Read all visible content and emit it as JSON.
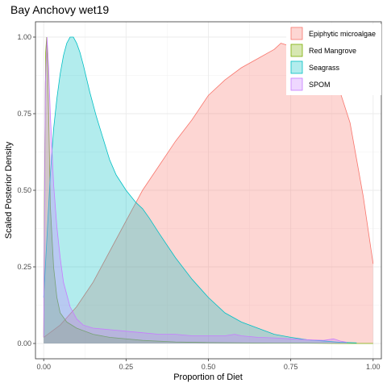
{
  "chart_data": {
    "type": "area",
    "title": "Bay Anchovy wet19",
    "xlabel": "Proportion of Diet",
    "ylabel": "Scaled Posterior Density",
    "xlim": [
      -0.025,
      1.025
    ],
    "ylim": [
      -0.05,
      1.05
    ],
    "x_ticks": [
      "0.00",
      "0.25",
      "0.50",
      "0.75",
      "1.00"
    ],
    "y_ticks": [
      "0.00",
      "0.25",
      "0.50",
      "0.75",
      "1.00"
    ],
    "x_tick_values": [
      0,
      0.25,
      0.5,
      0.75,
      1.0
    ],
    "y_tick_values": [
      0,
      0.25,
      0.5,
      0.75,
      1.0
    ],
    "grid": true,
    "legend_position": "top-right",
    "series": [
      {
        "name": "Epiphytic microalgae",
        "fill": "#F8766D",
        "stroke": "#F8766D",
        "x": [
          0,
          0.05,
          0.1,
          0.15,
          0.2,
          0.25,
          0.3,
          0.35,
          0.4,
          0.45,
          0.5,
          0.55,
          0.6,
          0.65,
          0.7,
          0.72,
          0.75,
          0.78,
          0.8,
          0.85,
          0.88,
          0.9,
          0.93,
          0.95,
          0.97,
          1.0
        ],
        "y": [
          0.02,
          0.06,
          0.12,
          0.2,
          0.3,
          0.4,
          0.5,
          0.58,
          0.66,
          0.73,
          0.81,
          0.86,
          0.9,
          0.93,
          0.96,
          0.98,
          0.97,
          0.96,
          0.95,
          0.9,
          0.85,
          0.82,
          0.72,
          0.6,
          0.48,
          0.26
        ]
      },
      {
        "name": "Red Mangrove",
        "fill": "#7CAE00",
        "stroke": "#7CAE00",
        "x": [
          0,
          0.003,
          0.006,
          0.009,
          0.012,
          0.016,
          0.02,
          0.03,
          0.04,
          0.05,
          0.07,
          0.1,
          0.15,
          0.2,
          0.3,
          0.4,
          0.5,
          0.6,
          0.7,
          0.8,
          0.9,
          1.0
        ],
        "y": [
          0.02,
          0.6,
          0.95,
          1.0,
          0.9,
          0.7,
          0.45,
          0.25,
          0.15,
          0.1,
          0.07,
          0.05,
          0.03,
          0.02,
          0.01,
          0.005,
          0.003,
          0.002,
          0.001,
          0.001,
          0.0,
          0.0
        ]
      },
      {
        "name": "Seagrass",
        "fill": "#00BFC4",
        "stroke": "#00BFC4",
        "x": [
          0,
          0.01,
          0.02,
          0.03,
          0.04,
          0.05,
          0.06,
          0.07,
          0.08,
          0.09,
          0.1,
          0.11,
          0.12,
          0.14,
          0.16,
          0.18,
          0.2,
          0.22,
          0.25,
          0.28,
          0.3,
          0.32,
          0.35,
          0.4,
          0.45,
          0.5,
          0.55,
          0.6,
          0.65,
          0.7,
          0.75,
          0.8,
          0.85,
          0.9,
          0.95
        ],
        "y": [
          0.15,
          0.35,
          0.55,
          0.7,
          0.8,
          0.88,
          0.94,
          0.98,
          1.0,
          1.0,
          0.98,
          0.95,
          0.91,
          0.82,
          0.74,
          0.67,
          0.6,
          0.55,
          0.5,
          0.46,
          0.44,
          0.41,
          0.36,
          0.28,
          0.21,
          0.15,
          0.1,
          0.07,
          0.05,
          0.03,
          0.02,
          0.012,
          0.008,
          0.004,
          0.002
        ]
      },
      {
        "name": "SPOM",
        "fill": "#C77CFF",
        "stroke": "#C77CFF",
        "x": [
          0,
          0.005,
          0.01,
          0.015,
          0.02,
          0.03,
          0.04,
          0.05,
          0.06,
          0.08,
          0.1,
          0.12,
          0.15,
          0.2,
          0.25,
          0.3,
          0.35,
          0.4,
          0.45,
          0.5,
          0.55,
          0.58,
          0.6,
          0.65,
          0.7,
          0.75,
          0.8,
          0.85,
          0.88,
          0.9,
          0.92
        ],
        "y": [
          0.02,
          0.85,
          1.0,
          0.9,
          0.75,
          0.52,
          0.38,
          0.28,
          0.2,
          0.12,
          0.08,
          0.06,
          0.05,
          0.045,
          0.04,
          0.035,
          0.03,
          0.03,
          0.025,
          0.025,
          0.025,
          0.03,
          0.025,
          0.02,
          0.018,
          0.015,
          0.012,
          0.01,
          0.015,
          0.008,
          0.004
        ]
      }
    ]
  }
}
